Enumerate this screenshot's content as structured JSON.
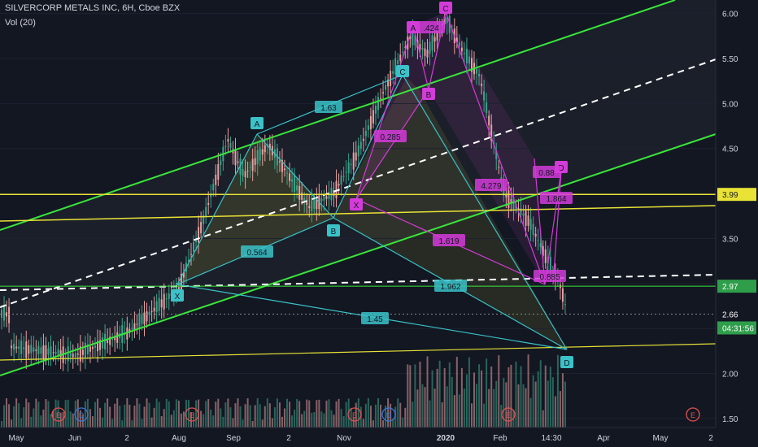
{
  "header": {
    "symbol_line": "SILVERCORP METALS INC, 6H, Cboe BZX",
    "volume_label": "Vol (20)"
  },
  "colors": {
    "background": "#131722",
    "candle_up": "#e8a0a0",
    "candle_down": "#3aa58a",
    "channel": "#39e53a",
    "yellow_line": "#e9e336",
    "cyan": "#3ac2c8",
    "magenta": "#d43bd9",
    "white_dashed": "#ffffff"
  },
  "chart_data": {
    "type": "candlestick",
    "title": "SILVERCORP METALS INC, 6H, Cboe BZX",
    "ylim": [
      1.4,
      6.15
    ],
    "y_ticks": [
      1.5,
      2.0,
      2.5,
      3.0,
      3.5,
      4.0,
      4.5,
      5.0,
      5.5,
      6.0
    ],
    "y_tick_labels": [
      "1.50",
      "2.00",
      "2.50",
      "3.00",
      "3.50",
      "4.00",
      "4.50",
      "5.00",
      "5.50",
      "6.00"
    ],
    "x_tick_labels": [
      "May",
      "Jun",
      "2",
      "Aug",
      "Sep",
      "2",
      "Nov",
      "2020",
      "Feb",
      "14:30",
      "Apr",
      "May",
      "2"
    ],
    "price_path": [
      [
        "May",
        2.3
      ],
      [
        "Jun",
        2.2
      ],
      [
        "Jul",
        2.45
      ],
      [
        "Aug",
        2.95
      ],
      [
        "Aug-mid",
        3.7
      ],
      [
        "Sep-early",
        4.6
      ],
      [
        "Sep",
        4.2
      ],
      [
        "Sep-late",
        4.55
      ],
      [
        "Oct-mid",
        3.85
      ],
      [
        "Oct-late",
        4.0
      ],
      [
        "Nov",
        4.45
      ],
      [
        "Nov-mid",
        5.1
      ],
      [
        "Dec",
        5.75
      ],
      [
        "Dec-mid",
        5.55
      ],
      [
        "2020",
        5.95
      ],
      [
        "Jan-mid",
        5.6
      ],
      [
        "Jan-late",
        5.3
      ],
      [
        "Feb",
        4.0
      ],
      [
        "Feb-mid",
        3.7
      ],
      [
        "Mar",
        2.95
      ],
      [
        "14:30",
        2.66
      ]
    ],
    "price_labels": [
      {
        "text": "3.99",
        "value": 3.99,
        "style": "yellow"
      },
      {
        "text": "2.97",
        "value": 2.97,
        "style": "green"
      },
      {
        "text": "2.66",
        "value": 2.66,
        "style": "white"
      },
      {
        "text": "04:31:56",
        "value": 2.5,
        "style": "green"
      }
    ],
    "pattern_points": [
      {
        "label": "X",
        "color": "cyan"
      },
      {
        "label": "A",
        "color": "cyan"
      },
      {
        "label": "B",
        "color": "cyan"
      },
      {
        "label": "C",
        "color": "cyan"
      },
      {
        "label": "D",
        "color": "cyan"
      },
      {
        "label": "X",
        "color": "magenta"
      },
      {
        "label": "A",
        "color": "magenta"
      },
      {
        "label": "B",
        "color": "magenta"
      },
      {
        "label": "C",
        "color": "magenta"
      },
      {
        "label": "D",
        "color": "magenta"
      }
    ],
    "ratio_labels": [
      {
        "text": "0.564",
        "color": "cyan"
      },
      {
        "text": "1.63",
        "color": "cyan"
      },
      {
        "text": "1.962",
        "color": "cyan"
      },
      {
        "text": "1.45",
        "color": "cyan"
      },
      {
        "text": "0.285",
        "color": "magenta"
      },
      {
        "text": "1.619",
        "color": "magenta"
      },
      {
        "text": "4.279",
        "color": "magenta"
      },
      {
        "text": ".424",
        "color": "magenta"
      },
      {
        "text": "0.88",
        "color": "magenta"
      },
      {
        "text": "1.864",
        "color": "magenta"
      },
      {
        "text": "0.885",
        "color": "magenta"
      }
    ],
    "event_markers": [
      "E",
      "D",
      "E",
      "E",
      "D",
      "E",
      "E"
    ]
  }
}
